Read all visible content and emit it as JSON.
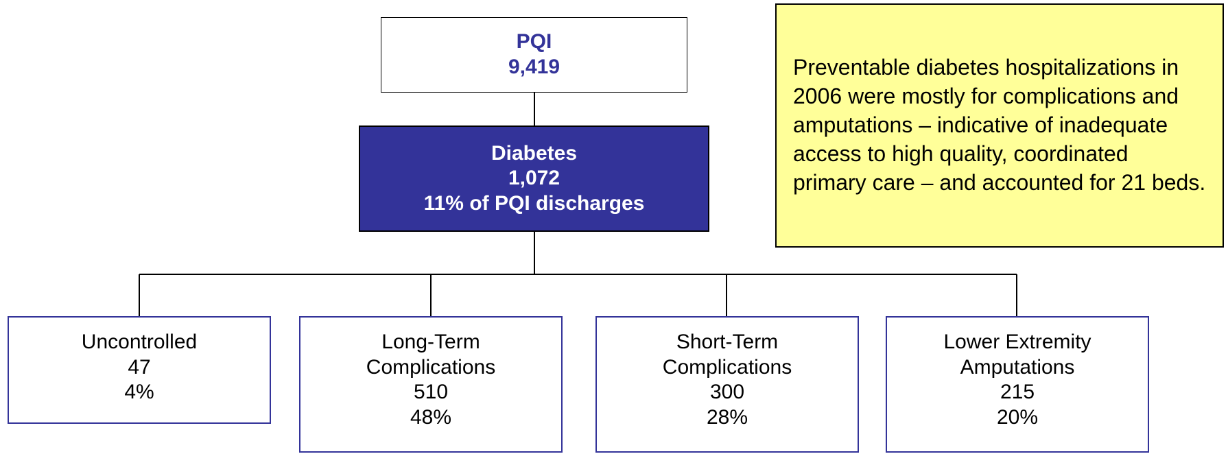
{
  "root": {
    "label": "PQI",
    "value": "9,419"
  },
  "diabetes": {
    "label": "Diabetes",
    "value": "1,072",
    "share": "11% of PQI discharges"
  },
  "children": [
    {
      "label": "Uncontrolled",
      "value": "47",
      "share": "4%"
    },
    {
      "label": "Long-Term Complications",
      "value": "510",
      "share": "48%"
    },
    {
      "label": "Short-Term Complications",
      "value": "300",
      "share": "28%"
    },
    {
      "label": "Lower Extremity Amputations",
      "value": "215",
      "share": "20%"
    }
  ],
  "note": "Preventable diabetes hospitalizations in 2006 were mostly for complications and amputations – indicative of inadequate access to high quality, coordinated primary care – and accounted for 21 beds."
}
